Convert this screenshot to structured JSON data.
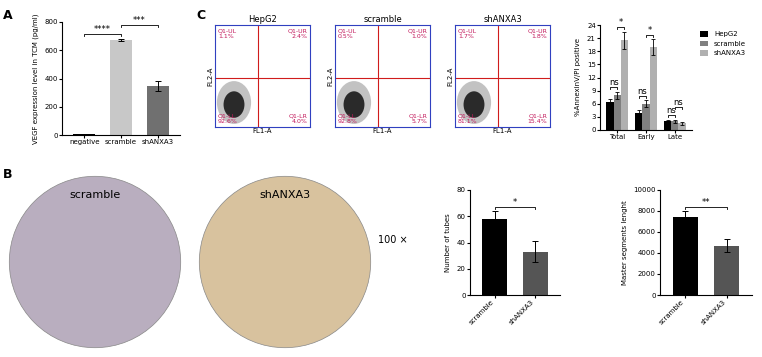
{
  "panel_labels": [
    "A",
    "B",
    "C"
  ],
  "micrographs": {
    "labels": [
      "scramble",
      "shANXA3"
    ],
    "colors": [
      "#b9aebf",
      "#d8c29e"
    ],
    "magnification": "100 ×"
  },
  "chart_data": [
    {
      "type": "bar",
      "ylabel": "VEGF expression level in TCM (pg/ml)",
      "categories": [
        "negative",
        "scramble",
        "shANXA3"
      ],
      "values": [
        5,
        675,
        345
      ],
      "errors": [
        2,
        8,
        35
      ],
      "colors": [
        "#000000",
        "#c8c8c8",
        "#707070"
      ],
      "ylim": [
        0,
        800
      ],
      "yticks": [
        0,
        200,
        400,
        600,
        800
      ],
      "significance": [
        {
          "between": [
            "negative",
            "scramble"
          ],
          "label": "****"
        },
        {
          "between": [
            "scramble",
            "shANXA3"
          ],
          "label": "***"
        }
      ]
    },
    {
      "type": "scatter",
      "title": "HepG2",
      "xlabel": "FL1-A",
      "ylabel": "FL2-A",
      "log": true,
      "xlim": [
        1,
        1000000
      ],
      "ylim": [
        1,
        1000000
      ],
      "tick_labels": false,
      "gate": {
        "x": 500,
        "y": 800
      },
      "quadrants": [
        {
          "name": "Q1-UL",
          "value": 1.1,
          "value_label": "1.1%"
        },
        {
          "name": "Q1-UR",
          "value": 2.4,
          "value_label": "2.4%"
        },
        {
          "name": "Q1-LL",
          "value": 92.6,
          "value_label": "92.6%"
        },
        {
          "name": "Q1-LR",
          "value": 4.0,
          "value_label": "4.0%"
        }
      ]
    },
    {
      "type": "scatter",
      "title": "scramble",
      "xlabel": "FL1-A",
      "ylabel": "FL2-A",
      "log": true,
      "xlim": [
        1,
        1000000
      ],
      "ylim": [
        1,
        1000000
      ],
      "tick_labels": false,
      "gate": {
        "x": 500,
        "y": 800
      },
      "quadrants": [
        {
          "name": "Q1-UL",
          "value": 0.5,
          "value_label": "0.5%"
        },
        {
          "name": "Q1-UR",
          "value": 1.0,
          "value_label": "1.0%"
        },
        {
          "name": "Q1-LL",
          "value": 92.8,
          "value_label": "92.8%"
        },
        {
          "name": "Q1-LR",
          "value": 5.7,
          "value_label": "5.7%"
        }
      ]
    },
    {
      "type": "scatter",
      "title": "shANXA3",
      "xlabel": "FL1-A",
      "ylabel": "FL2-A",
      "log": true,
      "xlim": [
        1,
        1000000
      ],
      "ylim": [
        1,
        1000000
      ],
      "tick_labels": false,
      "gate": {
        "x": 500,
        "y": 800
      },
      "quadrants": [
        {
          "name": "Q1-UL",
          "value": 1.7,
          "value_label": "1.7%"
        },
        {
          "name": "Q1-UR",
          "value": 1.8,
          "value_label": "1.8%"
        },
        {
          "name": "Q1-LL",
          "value": 81.1,
          "value_label": "81.1%"
        },
        {
          "name": "Q1-LR",
          "value": 15.4,
          "value_label": "15.4%"
        }
      ]
    },
    {
      "type": "grouped_bar",
      "ylabel": "%AnnexinV/PI positive",
      "categories": [
        "Total",
        "Early",
        "Late"
      ],
      "series": [
        {
          "name": "HepG2",
          "color": "#000000",
          "values": [
            6.5,
            4,
            2
          ],
          "errors": [
            0.6,
            0.5,
            0.3
          ]
        },
        {
          "name": "scramble",
          "color": "#808080",
          "values": [
            8,
            6,
            2
          ],
          "errors": [
            0.8,
            0.8,
            0.4
          ]
        },
        {
          "name": "shANXA3",
          "color": "#b0b0b0",
          "values": [
            20.5,
            19,
            1.5
          ],
          "errors": [
            2,
            1.8,
            0.3
          ]
        }
      ],
      "ylim": [
        0,
        24
      ],
      "yticks": [
        0,
        3,
        6,
        9,
        12,
        15,
        18,
        21,
        24
      ],
      "legend": "upper left",
      "significance": [
        {
          "category": "Total",
          "between": [
            "HepG2",
            "scramble"
          ],
          "label": "ns"
        },
        {
          "category": "Total",
          "between": [
            "scramble",
            "shANXA3"
          ],
          "label": "*"
        },
        {
          "category": "Early",
          "between": [
            "HepG2",
            "scramble"
          ],
          "label": "ns"
        },
        {
          "category": "Early",
          "between": [
            "scramble",
            "shANXA3"
          ],
          "label": "*"
        },
        {
          "category": "Late",
          "between": [
            "HepG2",
            "scramble"
          ],
          "label": "ns"
        },
        {
          "category": "Late",
          "between": [
            "scramble",
            "shANXA3"
          ],
          "label": "ns"
        }
      ]
    },
    {
      "type": "bar",
      "ylabel": "Number of tubes",
      "categories": [
        "scramble",
        "shANXA3"
      ],
      "values": [
        58,
        33
      ],
      "errors": [
        6,
        8
      ],
      "colors": [
        "#000000",
        "#555555"
      ],
      "ylim": [
        0,
        80
      ],
      "yticks": [
        0,
        20,
        40,
        60,
        80
      ],
      "significance": [
        {
          "between": [
            "scramble",
            "shANXA3"
          ],
          "label": "*"
        }
      ]
    },
    {
      "type": "bar",
      "ylabel": "Master segments lenght",
      "categories": [
        "scramble",
        "shANXA3"
      ],
      "values": [
        7400,
        4700
      ],
      "errors": [
        600,
        600
      ],
      "colors": [
        "#000000",
        "#555555"
      ],
      "ylim": [
        0,
        10000
      ],
      "yticks": [
        0,
        2000,
        4000,
        6000,
        8000,
        10000
      ],
      "significance": [
        {
          "between": [
            "scramble",
            "shANXA3"
          ],
          "label": "**"
        }
      ]
    }
  ]
}
